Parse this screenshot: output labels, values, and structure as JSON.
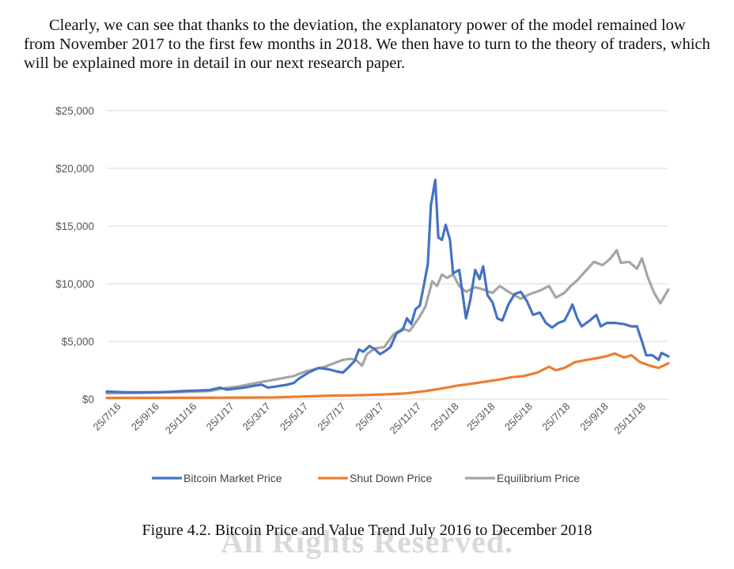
{
  "paragraph": "Clearly, we can see that thanks to the deviation, the explanatory power of the model remained low from November 2017 to the first few months in 2018. We then have to turn to the theory of traders, which will be explained more in detail in our next research paper.",
  "caption": "Figure 4.2. Bitcoin Price and Value Trend July 2016 to December 2018",
  "watermark": "All Rights Reserved.",
  "colors": {
    "bitcoin": "#4472C4",
    "shutdown": "#ED7D31",
    "equilibrium": "#A5A5A5",
    "grid": "#D9D9D9"
  },
  "chart_data": {
    "type": "line",
    "title": "",
    "xlabel": "",
    "ylabel": "",
    "ylim": [
      0,
      25000
    ],
    "yticks": [
      "$0",
      "$5,000",
      "$10,000",
      "$15,000",
      "$20,000",
      "$25,000"
    ],
    "xticks": [
      "25/7/16",
      "25/9/16",
      "25/11/16",
      "25/1/17",
      "25/3/17",
      "25/5/17",
      "25/7/17",
      "25/9/17",
      "25/11/17",
      "25/1/18",
      "25/3/18",
      "25/5/18",
      "25/7/18",
      "25/9/18",
      "25/11/18"
    ],
    "x_range": [
      "2016-07-01",
      "2018-12-31"
    ],
    "grid": true,
    "legend_position": "bottom",
    "series": [
      {
        "name": "Bitcoin Market Price",
        "points": [
          [
            "2016-07-01",
            650
          ],
          [
            "2016-07-25",
            600
          ],
          [
            "2016-08-15",
            580
          ],
          [
            "2016-09-01",
            590
          ],
          [
            "2016-09-25",
            605
          ],
          [
            "2016-10-15",
            640
          ],
          [
            "2016-11-01",
            700
          ],
          [
            "2016-11-25",
            740
          ],
          [
            "2016-12-15",
            780
          ],
          [
            "2017-01-01",
            990
          ],
          [
            "2017-01-12",
            820
          ],
          [
            "2017-01-25",
            900
          ],
          [
            "2017-02-10",
            1000
          ],
          [
            "2017-02-25",
            1150
          ],
          [
            "2017-03-10",
            1250
          ],
          [
            "2017-03-20",
            1000
          ],
          [
            "2017-04-01",
            1080
          ],
          [
            "2017-04-20",
            1250
          ],
          [
            "2017-05-01",
            1400
          ],
          [
            "2017-05-10",
            1800
          ],
          [
            "2017-05-25",
            2300
          ],
          [
            "2017-06-10",
            2700
          ],
          [
            "2017-06-25",
            2600
          ],
          [
            "2017-07-10",
            2400
          ],
          [
            "2017-07-20",
            2300
          ],
          [
            "2017-07-28",
            2700
          ],
          [
            "2017-08-08",
            3300
          ],
          [
            "2017-08-15",
            4300
          ],
          [
            "2017-08-22",
            4100
          ],
          [
            "2017-09-01",
            4600
          ],
          [
            "2017-09-10",
            4300
          ],
          [
            "2017-09-18",
            3900
          ],
          [
            "2017-09-25",
            4100
          ],
          [
            "2017-10-05",
            4500
          ],
          [
            "2017-10-15",
            5700
          ],
          [
            "2017-10-25",
            6000
          ],
          [
            "2017-11-01",
            7000
          ],
          [
            "2017-11-08",
            6500
          ],
          [
            "2017-11-15",
            7800
          ],
          [
            "2017-11-22",
            8100
          ],
          [
            "2017-11-29",
            10000
          ],
          [
            "2017-12-05",
            11700
          ],
          [
            "2017-12-10",
            16800
          ],
          [
            "2017-12-17",
            19000
          ],
          [
            "2017-12-22",
            14000
          ],
          [
            "2017-12-28",
            13800
          ],
          [
            "2018-01-03",
            15100
          ],
          [
            "2018-01-10",
            13800
          ],
          [
            "2018-01-15",
            10900
          ],
          [
            "2018-01-25",
            11200
          ],
          [
            "2018-02-05",
            7000
          ],
          [
            "2018-02-12",
            8600
          ],
          [
            "2018-02-20",
            11200
          ],
          [
            "2018-02-27",
            10400
          ],
          [
            "2018-03-05",
            11500
          ],
          [
            "2018-03-12",
            9000
          ],
          [
            "2018-03-20",
            8400
          ],
          [
            "2018-03-28",
            7000
          ],
          [
            "2018-04-05",
            6800
          ],
          [
            "2018-04-15",
            8200
          ],
          [
            "2018-04-25",
            9100
          ],
          [
            "2018-05-05",
            9300
          ],
          [
            "2018-05-15",
            8500
          ],
          [
            "2018-05-25",
            7300
          ],
          [
            "2018-06-05",
            7500
          ],
          [
            "2018-06-15",
            6600
          ],
          [
            "2018-06-25",
            6200
          ],
          [
            "2018-07-05",
            6600
          ],
          [
            "2018-07-15",
            6800
          ],
          [
            "2018-07-22",
            7500
          ],
          [
            "2018-07-28",
            8200
          ],
          [
            "2018-08-05",
            7000
          ],
          [
            "2018-08-12",
            6300
          ],
          [
            "2018-08-25",
            6800
          ],
          [
            "2018-09-05",
            7300
          ],
          [
            "2018-09-12",
            6300
          ],
          [
            "2018-09-22",
            6600
          ],
          [
            "2018-10-05",
            6600
          ],
          [
            "2018-10-20",
            6500
          ],
          [
            "2018-11-01",
            6300
          ],
          [
            "2018-11-10",
            6300
          ],
          [
            "2018-11-18",
            5000
          ],
          [
            "2018-11-25",
            3800
          ],
          [
            "2018-12-05",
            3800
          ],
          [
            "2018-12-15",
            3400
          ],
          [
            "2018-12-20",
            4000
          ],
          [
            "2018-12-31",
            3700
          ]
        ]
      },
      {
        "name": "Shut Down Price",
        "points": [
          [
            "2016-07-01",
            100
          ],
          [
            "2016-10-01",
            110
          ],
          [
            "2017-01-01",
            120
          ],
          [
            "2017-04-01",
            150
          ],
          [
            "2017-06-01",
            250
          ],
          [
            "2017-07-01",
            300
          ],
          [
            "2017-08-01",
            320
          ],
          [
            "2017-09-01",
            360
          ],
          [
            "2017-10-01",
            420
          ],
          [
            "2017-11-01",
            500
          ],
          [
            "2017-12-01",
            700
          ],
          [
            "2017-12-20",
            850
          ],
          [
            "2018-01-05",
            1000
          ],
          [
            "2018-01-20",
            1150
          ],
          [
            "2018-02-10",
            1300
          ],
          [
            "2018-03-01",
            1450
          ],
          [
            "2018-04-01",
            1700
          ],
          [
            "2018-04-20",
            1900
          ],
          [
            "2018-05-10",
            2000
          ],
          [
            "2018-06-01",
            2300
          ],
          [
            "2018-06-20",
            2800
          ],
          [
            "2018-07-01",
            2500
          ],
          [
            "2018-07-15",
            2700
          ],
          [
            "2018-08-01",
            3200
          ],
          [
            "2018-08-20",
            3400
          ],
          [
            "2018-09-01",
            3500
          ],
          [
            "2018-09-20",
            3700
          ],
          [
            "2018-10-05",
            3950
          ],
          [
            "2018-10-20",
            3600
          ],
          [
            "2018-11-01",
            3800
          ],
          [
            "2018-11-15",
            3200
          ],
          [
            "2018-12-01",
            2900
          ],
          [
            "2018-12-15",
            2700
          ],
          [
            "2018-12-31",
            3100
          ]
        ]
      },
      {
        "name": "Equilibrium Price",
        "points": [
          [
            "2016-07-01",
            500
          ],
          [
            "2016-09-01",
            550
          ],
          [
            "2016-11-01",
            600
          ],
          [
            "2016-12-15",
            700
          ],
          [
            "2017-01-10",
            950
          ],
          [
            "2017-02-01",
            1100
          ],
          [
            "2017-03-01",
            1400
          ],
          [
            "2017-04-01",
            1700
          ],
          [
            "2017-05-01",
            2000
          ],
          [
            "2017-05-20",
            2400
          ],
          [
            "2017-06-05",
            2600
          ],
          [
            "2017-06-20",
            2800
          ],
          [
            "2017-07-05",
            3100
          ],
          [
            "2017-07-20",
            3400
          ],
          [
            "2017-08-01",
            3500
          ],
          [
            "2017-08-10",
            3400
          ],
          [
            "2017-08-20",
            2900
          ],
          [
            "2017-08-28",
            3900
          ],
          [
            "2017-09-10",
            4400
          ],
          [
            "2017-09-25",
            4500
          ],
          [
            "2017-10-10",
            5600
          ],
          [
            "2017-10-25",
            6100
          ],
          [
            "2017-11-05",
            5900
          ],
          [
            "2017-11-12",
            6400
          ],
          [
            "2017-11-20",
            7000
          ],
          [
            "2017-12-01",
            8000
          ],
          [
            "2017-12-12",
            10200
          ],
          [
            "2017-12-20",
            9800
          ],
          [
            "2017-12-28",
            10800
          ],
          [
            "2018-01-05",
            10500
          ],
          [
            "2018-01-15",
            10800
          ],
          [
            "2018-01-25",
            9800
          ],
          [
            "2018-02-05",
            9300
          ],
          [
            "2018-02-20",
            9700
          ],
          [
            "2018-03-05",
            9500
          ],
          [
            "2018-03-20",
            9200
          ],
          [
            "2018-04-01",
            9800
          ],
          [
            "2018-04-15",
            9300
          ],
          [
            "2018-04-25",
            9000
          ],
          [
            "2018-05-05",
            8700
          ],
          [
            "2018-05-20",
            9100
          ],
          [
            "2018-06-05",
            9400
          ],
          [
            "2018-06-20",
            9800
          ],
          [
            "2018-07-01",
            8800
          ],
          [
            "2018-07-15",
            9200
          ],
          [
            "2018-07-25",
            9800
          ],
          [
            "2018-08-05",
            10300
          ],
          [
            "2018-08-20",
            11200
          ],
          [
            "2018-09-01",
            11900
          ],
          [
            "2018-09-15",
            11600
          ],
          [
            "2018-09-28",
            12200
          ],
          [
            "2018-10-08",
            12900
          ],
          [
            "2018-10-15",
            11800
          ],
          [
            "2018-10-28",
            11900
          ],
          [
            "2018-11-10",
            11300
          ],
          [
            "2018-11-18",
            12200
          ],
          [
            "2018-11-28",
            10500
          ],
          [
            "2018-12-08",
            9200
          ],
          [
            "2018-12-18",
            8300
          ],
          [
            "2018-12-31",
            9500
          ]
        ]
      }
    ]
  }
}
